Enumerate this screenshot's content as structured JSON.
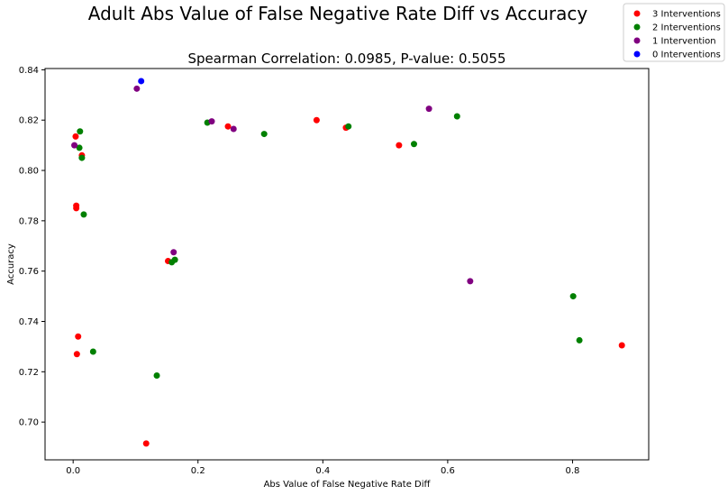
{
  "chart_data": {
    "type": "scatter",
    "title": "Adult Abs Value of False Negative Rate Diff vs Accuracy",
    "subtitle": "Spearman Correlation: 0.0985, P-value: 0.5055",
    "xlabel": "Abs Value of False Negative Rate Diff",
    "ylabel": "Accuracy",
    "xlim": [
      -0.045,
      0.922
    ],
    "ylim": [
      0.685,
      0.8405
    ],
    "x_ticks": [
      "0.0",
      "0.2",
      "0.4",
      "0.6",
      "0.8"
    ],
    "x_tick_values": [
      0.0,
      0.2,
      0.4,
      0.6,
      0.8
    ],
    "y_ticks": [
      "0.70",
      "0.72",
      "0.74",
      "0.76",
      "0.78",
      "0.80",
      "0.82",
      "0.84"
    ],
    "y_tick_values": [
      0.7,
      0.72,
      0.74,
      0.76,
      0.78,
      0.8,
      0.82,
      0.84
    ],
    "legend_position": "top-right",
    "series": [
      {
        "name": "3 Interventions",
        "color": "#ff0000",
        "points": [
          [
            0.004,
            0.8135
          ],
          [
            0.005,
            0.786
          ],
          [
            0.005,
            0.785
          ],
          [
            0.008,
            0.734
          ],
          [
            0.006,
            0.727
          ],
          [
            0.014,
            0.806
          ],
          [
            0.117,
            0.6915
          ],
          [
            0.152,
            0.764
          ],
          [
            0.248,
            0.8175
          ],
          [
            0.39,
            0.82
          ],
          [
            0.437,
            0.817
          ],
          [
            0.522,
            0.81
          ],
          [
            0.879,
            0.7305
          ]
        ]
      },
      {
        "name": "2 Interventions",
        "color": "#008000",
        "points": [
          [
            0.011,
            0.8155
          ],
          [
            0.01,
            0.809
          ],
          [
            0.014,
            0.805
          ],
          [
            0.017,
            0.7825
          ],
          [
            0.032,
            0.728
          ],
          [
            0.134,
            0.7185
          ],
          [
            0.158,
            0.7635
          ],
          [
            0.163,
            0.7645
          ],
          [
            0.215,
            0.819
          ],
          [
            0.306,
            0.8145
          ],
          [
            0.441,
            0.8175
          ],
          [
            0.546,
            0.8105
          ],
          [
            0.615,
            0.8215
          ],
          [
            0.801,
            0.75
          ],
          [
            0.811,
            0.7325
          ]
        ]
      },
      {
        "name": "1 Intervention",
        "color": "#800080",
        "points": [
          [
            0.002,
            0.81
          ],
          [
            0.102,
            0.8325
          ],
          [
            0.161,
            0.7675
          ],
          [
            0.222,
            0.8195
          ],
          [
            0.257,
            0.8165
          ],
          [
            0.57,
            0.8245
          ],
          [
            0.636,
            0.756
          ]
        ]
      },
      {
        "name": "0 Interventions",
        "color": "#0000ff",
        "points": [
          [
            0.109,
            0.8355
          ]
        ]
      }
    ]
  }
}
